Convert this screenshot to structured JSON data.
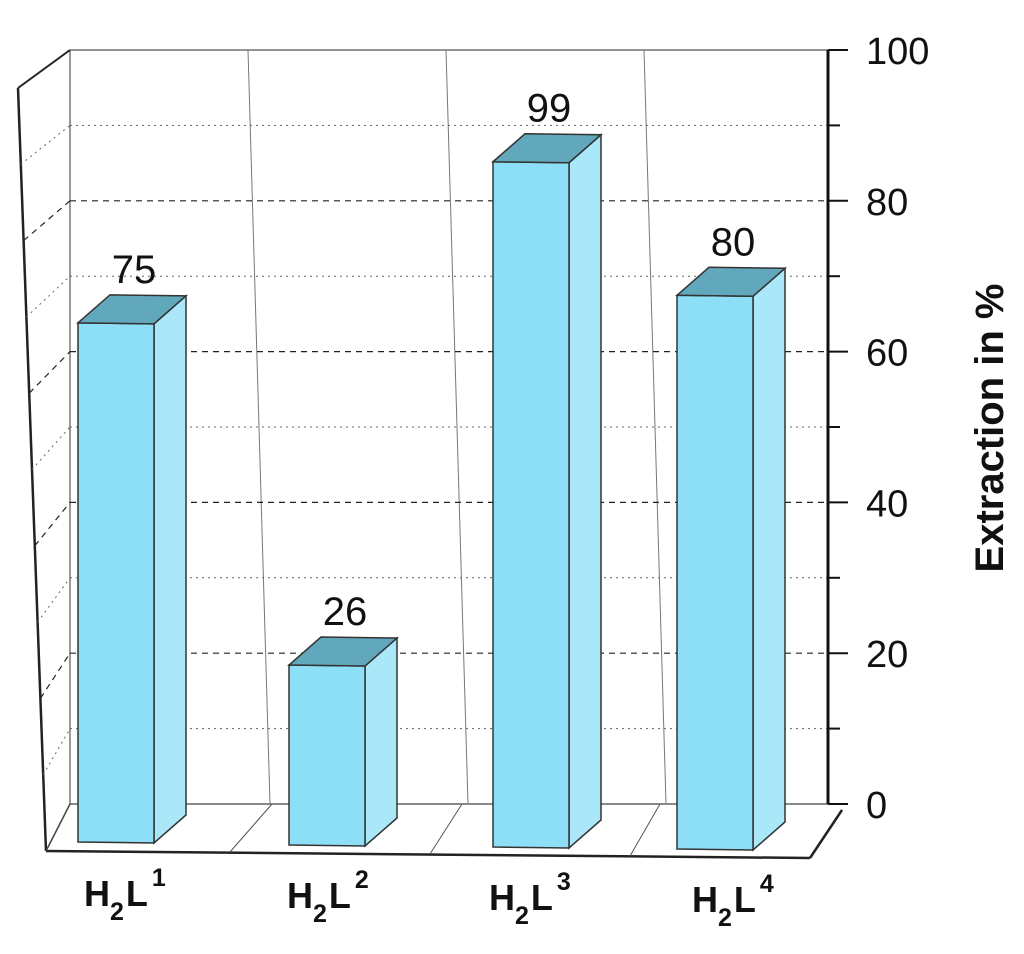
{
  "chart_data": {
    "type": "bar",
    "categories": [
      "H2L1",
      "H2L2",
      "H2L3",
      "H2L4"
    ],
    "category_parts": [
      {
        "h": "H",
        "h_sub": "2",
        "l": "L",
        "l_sup": "1"
      },
      {
        "h": "H",
        "h_sub": "2",
        "l": "L",
        "l_sup": "2"
      },
      {
        "h": "H",
        "h_sub": "2",
        "l": "L",
        "l_sup": "3"
      },
      {
        "h": "H",
        "h_sub": "2",
        "l": "L",
        "l_sup": "4"
      }
    ],
    "values": [
      75,
      26,
      99,
      80
    ],
    "data_labels": [
      "75",
      "26",
      "99",
      "80"
    ],
    "ylabel": "Extraction in %",
    "ylim": [
      0,
      100
    ],
    "yticks": [
      0,
      20,
      40,
      60,
      80,
      100
    ],
    "ytick_labels": [
      "0",
      "20",
      "40",
      "60",
      "80",
      "100"
    ],
    "grid": true,
    "style": "3d",
    "bar_colors": {
      "front": "#8ddff7",
      "side": "#a9e7f9",
      "top": "#62a8bd"
    }
  }
}
